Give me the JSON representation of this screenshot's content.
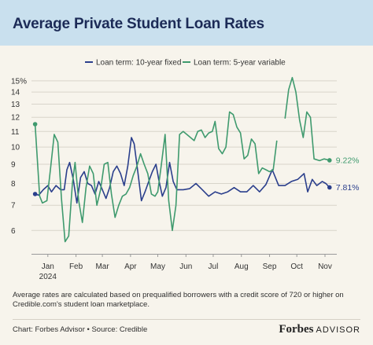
{
  "header": {
    "title": "Average Private Student Loan Rates"
  },
  "footnote": "Average rates are calculated based on prequalified borrowers with a credit score of 720 or higher on Credible.com's student loan marketplace.",
  "source": "Chart: Forbes Advisor • Source: Credible",
  "logo": {
    "brand": "Forbes",
    "sub": "ADVISOR"
  },
  "colors": {
    "background": "#f7f4ec",
    "title_bar": "#c9e0ee",
    "title_text": "#1c2b57"
  },
  "chart_data": {
    "type": "line",
    "title": "Average Private Student Loan Rates",
    "y_scale": "log",
    "ylim": [
      5.2,
      15.5
    ],
    "y_ticks": [
      {
        "value": 6,
        "label": "6"
      },
      {
        "value": 7,
        "label": "7"
      },
      {
        "value": 8,
        "label": "8"
      },
      {
        "value": 9,
        "label": "9"
      },
      {
        "value": 10,
        "label": "10"
      },
      {
        "value": 11,
        "label": "11"
      },
      {
        "value": 12,
        "label": "12"
      },
      {
        "value": 13,
        "label": "13"
      },
      {
        "value": 14,
        "label": "14"
      },
      {
        "value": 15,
        "label": "15%"
      }
    ],
    "x_range": [
      "2023-12-28",
      "2024-11-28"
    ],
    "x_ticks": [
      {
        "date": "2024-01-15",
        "label": "Jan",
        "sublabel": "2024"
      },
      {
        "date": "2024-02-15",
        "label": "Feb"
      },
      {
        "date": "2024-03-15",
        "label": "Mar"
      },
      {
        "date": "2024-04-15",
        "label": "Apr"
      },
      {
        "date": "2024-05-15",
        "label": "May"
      },
      {
        "date": "2024-06-15",
        "label": "Jun"
      },
      {
        "date": "2024-07-15",
        "label": "Jul"
      },
      {
        "date": "2024-08-15",
        "label": "Aug"
      },
      {
        "date": "2024-09-15",
        "label": "Sep"
      },
      {
        "date": "2024-10-15",
        "label": "Oct"
      },
      {
        "date": "2024-11-15",
        "label": "Nov"
      }
    ],
    "legend": {
      "position": "top-center"
    },
    "grid": {
      "horizontal": true,
      "vertical": false
    },
    "series": [
      {
        "name": "Loan term: 10-year fixed",
        "color": "#2b3f8c",
        "end_label": "7.81%",
        "points": [
          [
            "2024-01-01",
            7.5
          ],
          [
            "2024-01-05",
            7.45
          ],
          [
            "2024-01-10",
            7.7
          ],
          [
            "2024-01-15",
            7.9
          ],
          [
            "2024-01-19",
            7.6
          ],
          [
            "2024-01-24",
            7.9
          ],
          [
            "2024-01-29",
            7.7
          ],
          [
            "2024-02-02",
            7.7
          ],
          [
            "2024-02-05",
            8.7
          ],
          [
            "2024-02-08",
            9.1
          ],
          [
            "2024-02-12",
            8.2
          ],
          [
            "2024-02-16",
            7.1
          ],
          [
            "2024-02-20",
            8.3
          ],
          [
            "2024-02-24",
            8.6
          ],
          [
            "2024-02-28",
            8.0
          ],
          [
            "2024-03-03",
            7.9
          ],
          [
            "2024-03-07",
            7.5
          ],
          [
            "2024-03-11",
            8.1
          ],
          [
            "2024-03-15",
            7.7
          ],
          [
            "2024-03-19",
            7.3
          ],
          [
            "2024-03-23",
            7.8
          ],
          [
            "2024-03-27",
            8.6
          ],
          [
            "2024-03-31",
            8.9
          ],
          [
            "2024-04-04",
            8.5
          ],
          [
            "2024-04-08",
            7.9
          ],
          [
            "2024-04-12",
            8.9
          ],
          [
            "2024-04-16",
            10.6
          ],
          [
            "2024-04-19",
            10.2
          ],
          [
            "2024-04-23",
            8.6
          ],
          [
            "2024-04-27",
            7.2
          ],
          [
            "2024-05-01",
            7.6
          ],
          [
            "2024-05-05",
            8.1
          ],
          [
            "2024-05-09",
            8.6
          ],
          [
            "2024-05-13",
            9.0
          ],
          [
            "2024-05-16",
            8.2
          ],
          [
            "2024-05-20",
            7.4
          ],
          [
            "2024-05-24",
            7.8
          ],
          [
            "2024-05-28",
            9.1
          ],
          [
            "2024-06-01",
            8.1
          ],
          [
            "2024-06-05",
            7.7
          ],
          [
            "2024-06-12",
            7.7
          ],
          [
            "2024-06-19",
            7.75
          ],
          [
            "2024-06-26",
            8.0
          ],
          [
            "2024-07-03",
            7.7
          ],
          [
            "2024-07-10",
            7.4
          ],
          [
            "2024-07-17",
            7.6
          ],
          [
            "2024-07-24",
            7.5
          ],
          [
            "2024-07-31",
            7.6
          ],
          [
            "2024-08-07",
            7.8
          ],
          [
            "2024-08-14",
            7.6
          ],
          [
            "2024-08-21",
            7.6
          ],
          [
            "2024-08-28",
            7.9
          ],
          [
            "2024-09-04",
            7.6
          ],
          [
            "2024-09-11",
            7.95
          ],
          [
            "2024-09-18",
            8.7
          ],
          [
            "2024-09-25",
            7.9
          ],
          [
            "2024-10-02",
            7.9
          ],
          [
            "2024-10-09",
            8.1
          ],
          [
            "2024-10-16",
            8.2
          ],
          [
            "2024-10-23",
            8.5
          ],
          [
            "2024-10-27",
            7.6
          ],
          [
            "2024-11-01",
            8.2
          ],
          [
            "2024-11-06",
            7.9
          ],
          [
            "2024-11-12",
            8.1
          ],
          [
            "2024-11-16",
            8.0
          ],
          [
            "2024-11-20",
            7.81
          ]
        ]
      },
      {
        "name": "Loan term: 5-year variable",
        "color": "#3f9a6e",
        "end_label": "9.22%",
        "segments": [
          [
            [
              "2024-01-01",
              11.5
            ],
            [
              "2024-01-06",
              7.4
            ],
            [
              "2024-01-09",
              7.1
            ],
            [
              "2024-01-14",
              7.2
            ],
            [
              "2024-01-18",
              8.8
            ],
            [
              "2024-01-22",
              10.8
            ],
            [
              "2024-01-26",
              10.3
            ],
            [
              "2024-01-30",
              7.3
            ],
            [
              "2024-02-03",
              5.6
            ],
            [
              "2024-02-07",
              5.8
            ],
            [
              "2024-02-11",
              8.0
            ],
            [
              "2024-02-14",
              9.1
            ],
            [
              "2024-02-18",
              7.2
            ],
            [
              "2024-02-22",
              6.3
            ],
            [
              "2024-02-26",
              7.8
            ],
            [
              "2024-03-01",
              8.9
            ],
            [
              "2024-03-05",
              8.5
            ],
            [
              "2024-03-09",
              7.0
            ],
            [
              "2024-03-13",
              7.7
            ],
            [
              "2024-03-17",
              9.0
            ],
            [
              "2024-03-21",
              9.1
            ],
            [
              "2024-03-25",
              7.5
            ],
            [
              "2024-03-29",
              6.5
            ],
            [
              "2024-04-02",
              7.0
            ],
            [
              "2024-04-06",
              7.4
            ],
            [
              "2024-04-10",
              7.5
            ],
            [
              "2024-04-14",
              7.8
            ],
            [
              "2024-04-18",
              8.4
            ],
            [
              "2024-04-22",
              8.9
            ],
            [
              "2024-04-26",
              9.6
            ],
            [
              "2024-04-30",
              9.0
            ],
            [
              "2024-05-04",
              8.5
            ],
            [
              "2024-05-08",
              7.5
            ],
            [
              "2024-05-12",
              7.4
            ],
            [
              "2024-05-15",
              7.6
            ],
            [
              "2024-05-19",
              9.0
            ],
            [
              "2024-05-23",
              10.8
            ],
            [
              "2024-05-27",
              7.2
            ],
            [
              "2024-05-31",
              6.0
            ],
            [
              "2024-06-04",
              7.0
            ],
            [
              "2024-06-08",
              10.8
            ],
            [
              "2024-06-12",
              11.0
            ],
            [
              "2024-06-16",
              10.8
            ],
            [
              "2024-06-20",
              10.6
            ],
            [
              "2024-06-24",
              10.4
            ],
            [
              "2024-06-28",
              11.0
            ],
            [
              "2024-07-02",
              11.1
            ],
            [
              "2024-07-06",
              10.6
            ],
            [
              "2024-07-10",
              10.9
            ],
            [
              "2024-07-14",
              11.0
            ],
            [
              "2024-07-17",
              11.7
            ],
            [
              "2024-07-21",
              9.9
            ],
            [
              "2024-07-25",
              9.6
            ],
            [
              "2024-07-29",
              10.0
            ],
            [
              "2024-08-02",
              12.4
            ],
            [
              "2024-08-06",
              12.2
            ],
            [
              "2024-08-10",
              11.3
            ],
            [
              "2024-08-14",
              10.9
            ],
            [
              "2024-08-18",
              9.3
            ],
            [
              "2024-08-22",
              9.5
            ],
            [
              "2024-08-26",
              10.5
            ],
            [
              "2024-08-30",
              10.2
            ],
            [
              "2024-09-03",
              8.5
            ],
            [
              "2024-09-07",
              8.8
            ],
            [
              "2024-09-11",
              8.7
            ],
            [
              "2024-09-15",
              8.6
            ],
            [
              "2024-09-19",
              8.7
            ],
            [
              "2024-09-23",
              10.4
            ]
          ],
          [
            [
              "2024-10-02",
              11.9
            ],
            [
              "2024-10-06",
              14.2
            ],
            [
              "2024-10-10",
              15.3
            ],
            [
              "2024-10-14",
              14.0
            ],
            [
              "2024-10-18",
              11.8
            ],
            [
              "2024-10-22",
              10.6
            ],
            [
              "2024-10-26",
              12.4
            ],
            [
              "2024-10-30",
              12.0
            ],
            [
              "2024-11-03",
              9.3
            ],
            [
              "2024-11-09",
              9.2
            ],
            [
              "2024-11-14",
              9.3
            ],
            [
              "2024-11-20",
              9.22
            ]
          ]
        ]
      }
    ]
  }
}
